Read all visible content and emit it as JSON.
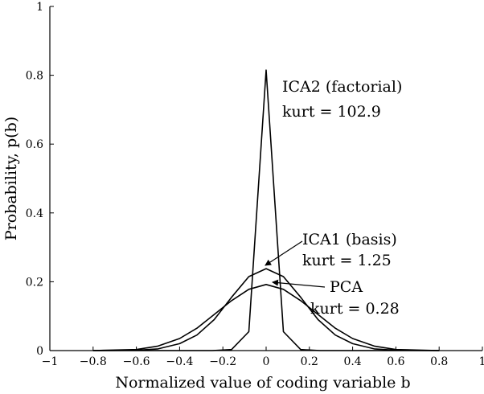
{
  "chart_data": {
    "type": "line",
    "xlabel": "Normalized value of coding variable b",
    "ylabel": "Probability, p(b)",
    "xlim": [
      -1,
      1
    ],
    "ylim": [
      0,
      1
    ],
    "x_ticks": [
      "−1",
      "−0.8",
      "−0.6",
      "−0.4",
      "−0.2",
      "0",
      "0.2",
      "0.4",
      "0.6",
      "0.8",
      "1"
    ],
    "y_ticks": [
      "0",
      "0.2",
      "0.4",
      "0.6",
      "0.8",
      "1"
    ],
    "grid": false,
    "series": [
      {
        "key": "ica2",
        "x": [
          -0.8,
          -0.25,
          -0.16,
          -0.08,
          0.0,
          0.08,
          0.16,
          0.25,
          0.8
        ],
        "y": [
          0,
          0,
          0.003,
          0.055,
          0.815,
          0.055,
          0.003,
          0,
          0
        ]
      },
      {
        "key": "ica1",
        "x": [
          -0.8,
          -0.6,
          -0.5,
          -0.4,
          -0.32,
          -0.24,
          -0.16,
          -0.08,
          0.0,
          0.08,
          0.16,
          0.24,
          0.32,
          0.4,
          0.5,
          0.6,
          0.8
        ],
        "y": [
          0,
          0.001,
          0.005,
          0.02,
          0.045,
          0.09,
          0.155,
          0.215,
          0.238,
          0.215,
          0.155,
          0.09,
          0.045,
          0.02,
          0.005,
          0.001,
          0
        ]
      },
      {
        "key": "pca",
        "x": [
          -0.8,
          -0.6,
          -0.5,
          -0.4,
          -0.32,
          -0.24,
          -0.16,
          -0.08,
          0.0,
          0.08,
          0.16,
          0.24,
          0.32,
          0.4,
          0.5,
          0.6,
          0.8
        ],
        "y": [
          0,
          0.003,
          0.013,
          0.035,
          0.065,
          0.105,
          0.145,
          0.178,
          0.192,
          0.178,
          0.145,
          0.105,
          0.065,
          0.035,
          0.013,
          0.003,
          0
        ]
      }
    ],
    "annotations": [
      {
        "key": "ica2",
        "name": "ICA2 (factorial)",
        "stat": "kurt = 102.9"
      },
      {
        "key": "ica1",
        "name": "ICA1 (basis)",
        "stat": "kurt = 1.25"
      },
      {
        "key": "pca",
        "name": "PCA",
        "stat": "kurt = 0.28"
      }
    ]
  }
}
